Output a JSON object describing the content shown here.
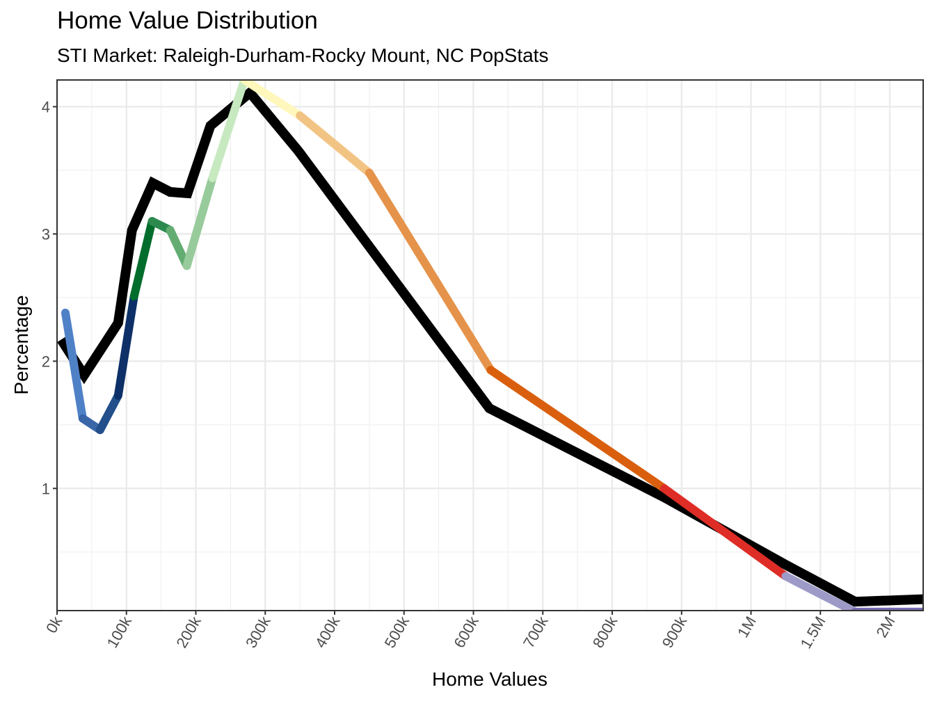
{
  "chart_data": {
    "type": "line",
    "title": "Home Value Distribution",
    "subtitle": "STI Market: Raleigh-Durham-Rocky Mount, NC PopStats",
    "xlabel": "Home Values",
    "ylabel": "Percentage",
    "x_ticks": [
      {
        "value": 0,
        "label": "0k"
      },
      {
        "value": 100000,
        "label": "100k"
      },
      {
        "value": 200000,
        "label": "200k"
      },
      {
        "value": 300000,
        "label": "300k"
      },
      {
        "value": 400000,
        "label": "400k"
      },
      {
        "value": 500000,
        "label": "500k"
      },
      {
        "value": 600000,
        "label": "600k"
      },
      {
        "value": 700000,
        "label": "700k"
      },
      {
        "value": 800000,
        "label": "800k"
      },
      {
        "value": 900000,
        "label": "900k"
      },
      {
        "value": 1000000,
        "label": "1M"
      },
      {
        "value": 1500000,
        "label": "1.5M"
      },
      {
        "value": 2000000,
        "label": "2M"
      }
    ],
    "y_ticks": [
      {
        "value": 1,
        "label": "1"
      },
      {
        "value": 2,
        "label": "2"
      },
      {
        "value": 3,
        "label": "3"
      },
      {
        "value": 4,
        "label": "4"
      }
    ],
    "xlim": [
      0,
      2240000
    ],
    "ylim": [
      0.04,
      4.21
    ],
    "grid": true,
    "series": [
      {
        "color": "#000000",
        "points": [
          [
            6000,
            2.17
          ],
          [
            39000,
            1.89
          ],
          [
            88000,
            2.3
          ],
          [
            108000,
            3.03
          ],
          [
            138000,
            3.4
          ],
          [
            163000,
            3.33
          ],
          [
            188000,
            3.32
          ],
          [
            221000,
            3.85
          ],
          [
            278000,
            4.11
          ],
          [
            348000,
            3.65
          ],
          [
            623000,
            1.63
          ],
          [
            875000,
            0.93
          ],
          [
            1250000,
            0.4
          ],
          [
            1750000,
            0.11
          ],
          [
            2250000,
            0.13
          ]
        ]
      },
      {
        "points": [
          [
            12000,
            2.38
          ],
          [
            37000,
            1.55
          ],
          [
            62000,
            1.46
          ],
          [
            88000,
            1.73
          ],
          [
            111000,
            2.51
          ],
          [
            137000,
            3.1
          ],
          [
            163000,
            3.03
          ],
          [
            187000,
            2.75
          ],
          [
            224000,
            3.44
          ],
          [
            270000,
            4.21
          ],
          [
            350000,
            3.93
          ],
          [
            450000,
            3.48
          ],
          [
            625000,
            1.93
          ],
          [
            875000,
            1.0
          ],
          [
            1250000,
            0.31
          ],
          [
            1750000,
            0.03
          ],
          [
            2250000,
            0.03
          ]
        ],
        "segment_colors": [
          "#4f81c7",
          "#3a66a8",
          "#234f8a",
          "#0d3068",
          "#006d2c",
          "#2d8a4e",
          "#63ad72",
          "#98cb9b",
          "#c7e9c0",
          "#fff7bc",
          "#f2c484",
          "#e5934a",
          "#d95f0e",
          "#de2d26",
          "#9e9ac8",
          "#756bb1"
        ]
      }
    ]
  }
}
